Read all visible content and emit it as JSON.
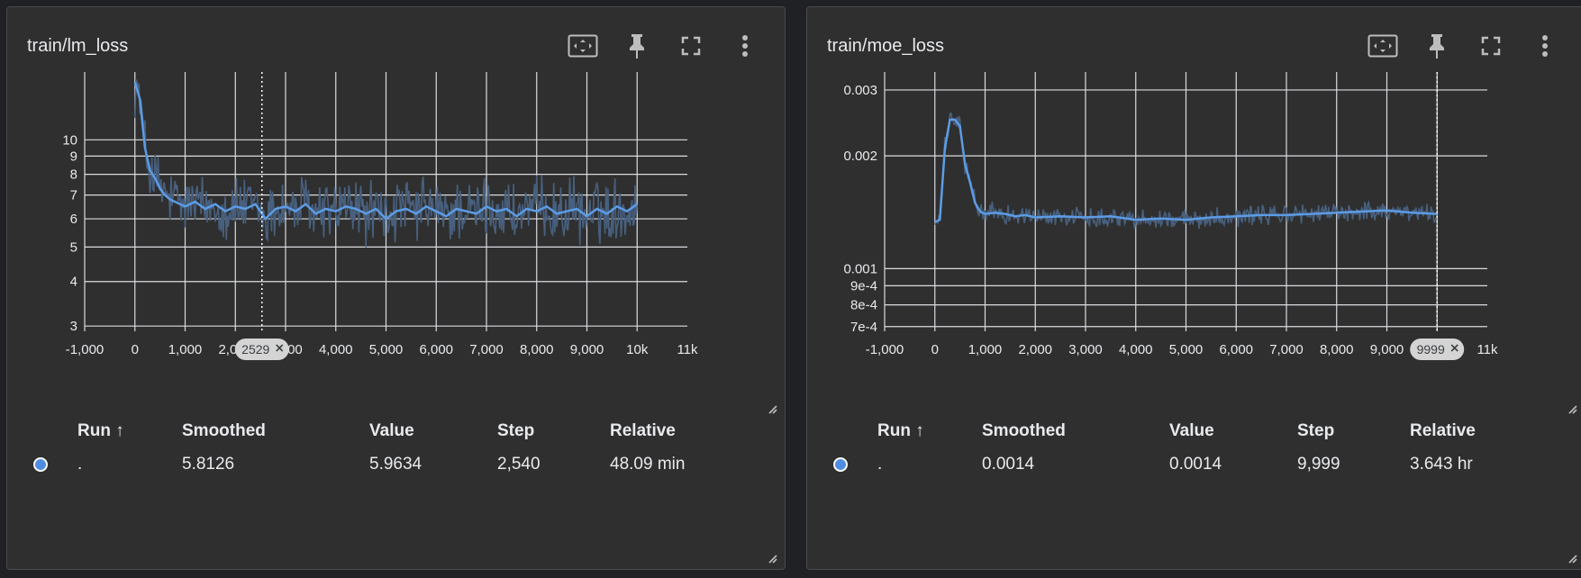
{
  "colors": {
    "smoothed": "#5c9ce6",
    "raw": "#48607e",
    "grid": "#dadce0",
    "cursor": "#ffffff",
    "run_dot": "#4f8de0"
  },
  "icons": [
    "fit-domain-icon",
    "pin-icon",
    "fullscreen-icon",
    "more-vert-icon"
  ],
  "chart_data": [
    {
      "type": "line",
      "title": "train/lm_loss",
      "xlim": [
        -1000,
        11000
      ],
      "yscale": "log",
      "ylim": [
        2.9,
        15.5
      ],
      "x_ticks": [
        "-1,000",
        "0",
        "1,000",
        "2,000",
        "3,000",
        "4,000",
        "5,000",
        "6,000",
        "7,000",
        "8,000",
        "9,000",
        "10k",
        "11k"
      ],
      "y_ticks": [
        [
          "3",
          "3"
        ],
        [
          "4",
          "4"
        ],
        [
          "5",
          "5"
        ],
        [
          "6",
          "6"
        ],
        [
          "7",
          "7"
        ],
        [
          "8",
          "8"
        ],
        [
          "9",
          "9"
        ],
        [
          "10",
          "10"
        ]
      ],
      "cursor_step": 2529,
      "cursor_label": "2529",
      "series": [
        {
          "x": [
            0,
            100,
            200,
            300,
            400,
            500,
            600,
            700,
            800,
            900,
            1000,
            1200,
            1400,
            1600,
            1800,
            2000,
            2200,
            2400,
            2600,
            2800,
            3000,
            3200,
            3400,
            3600,
            3800,
            4000,
            4200,
            4400,
            4600,
            4800,
            5000,
            5200,
            5400,
            5600,
            5800,
            6000,
            6200,
            6400,
            6600,
            6800,
            7000,
            7200,
            7400,
            7600,
            7800,
            8000,
            8200,
            8400,
            8600,
            8800,
            9000,
            9200,
            9400,
            9600,
            9800,
            10000
          ],
          "y": [
            14.5,
            13.0,
            9.5,
            8.2,
            7.8,
            7.3,
            7.0,
            6.8,
            6.7,
            6.6,
            6.5,
            6.7,
            6.4,
            6.6,
            6.3,
            6.5,
            6.4,
            6.6,
            6.0,
            6.4,
            6.5,
            6.3,
            6.6,
            6.2,
            6.4,
            6.3,
            6.5,
            6.4,
            6.2,
            6.4,
            6.0,
            6.3,
            6.4,
            6.2,
            6.5,
            6.3,
            6.1,
            6.4,
            6.3,
            6.2,
            6.5,
            6.3,
            6.4,
            6.1,
            6.4,
            6.3,
            6.5,
            6.2,
            6.3,
            6.4,
            6.1,
            6.4,
            6.2,
            6.5,
            6.3,
            6.6
          ]
        }
      ]
    },
    {
      "type": "line",
      "title": "train/moe_loss",
      "xlim": [
        -1000,
        11000
      ],
      "yscale": "log",
      "ylim": [
        0.00068,
        0.00335
      ],
      "x_ticks": [
        "-1,000",
        "0",
        "1,000",
        "2,000",
        "3,000",
        "4,000",
        "5,000",
        "6,000",
        "7,000",
        "8,000",
        "9,000",
        "10k",
        "11k"
      ],
      "y_ticks": [
        [
          "7e-4",
          "0.0007"
        ],
        [
          "8e-4",
          "0.0008"
        ],
        [
          "9e-4",
          "0.0009"
        ],
        [
          "0.001",
          "0.001"
        ],
        [
          "0.002",
          "0.002"
        ],
        [
          "0.003",
          "0.003"
        ]
      ],
      "cursor_step": 9999,
      "cursor_label": "9999",
      "series": [
        {
          "x": [
            0,
            100,
            200,
            300,
            400,
            500,
            600,
            700,
            800,
            900,
            1000,
            1200,
            1400,
            1600,
            1800,
            2000,
            2500,
            3000,
            3500,
            4000,
            4500,
            5000,
            5500,
            6000,
            6500,
            7000,
            7500,
            8000,
            8500,
            9000,
            9500,
            9999
          ],
          "y": [
            0.00133,
            0.00135,
            0.0021,
            0.0025,
            0.0025,
            0.0024,
            0.0019,
            0.0017,
            0.0015,
            0.00142,
            0.0014,
            0.00141,
            0.0014,
            0.00138,
            0.00139,
            0.00137,
            0.00138,
            0.00137,
            0.00138,
            0.00135,
            0.00136,
            0.00135,
            0.00137,
            0.00138,
            0.00139,
            0.00139,
            0.0014,
            0.00141,
            0.00142,
            0.00143,
            0.00141,
            0.0014
          ]
        }
      ]
    }
  ],
  "cards": [
    {
      "title": "train/lm_loss",
      "table": {
        "headers": {
          "run": "Run ↑",
          "smoothed": "Smoothed",
          "value": "Value",
          "step": "Step",
          "relative": "Relative"
        },
        "row": {
          "run": ".",
          "smoothed": "5.8126",
          "value": "5.9634",
          "step": "2,540",
          "relative": "48.09 min"
        }
      }
    },
    {
      "title": "train/moe_loss",
      "table": {
        "headers": {
          "run": "Run ↑",
          "smoothed": "Smoothed",
          "value": "Value",
          "step": "Step",
          "relative": "Relative"
        },
        "row": {
          "run": ".",
          "smoothed": "0.0014",
          "value": "0.0014",
          "step": "9,999",
          "relative": "3.643 hr"
        }
      }
    }
  ]
}
